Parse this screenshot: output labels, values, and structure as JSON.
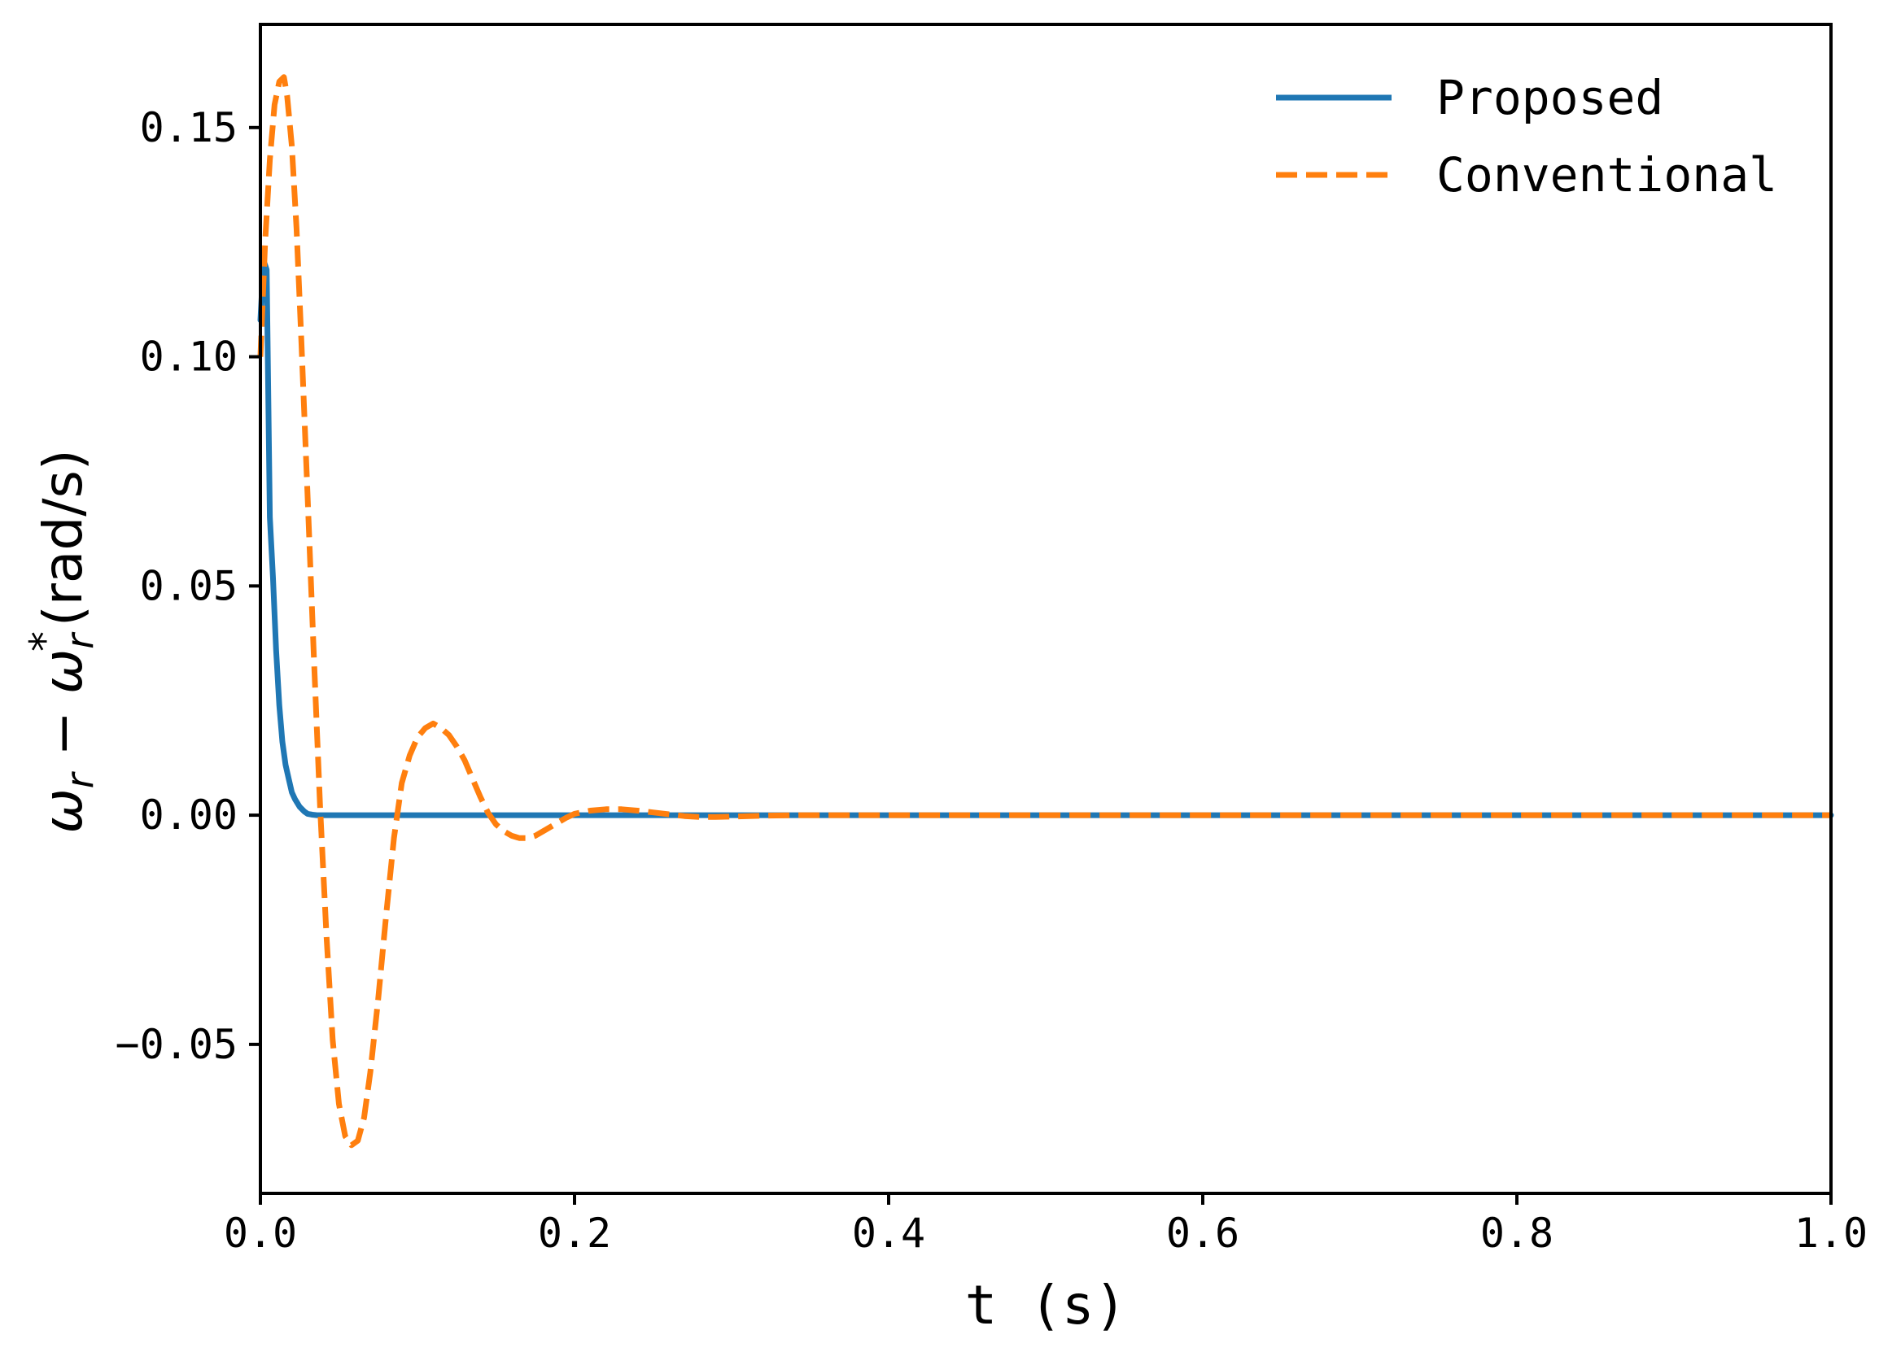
{
  "chart_data": {
    "type": "line",
    "xlabel": "t (s)",
    "ylabel": {
      "base": "ω",
      "sub": "r",
      "minus": " − ",
      "base2": "ω",
      "sub2": "r",
      "sup2": "*",
      "unit": "(rad/s)"
    },
    "xlim": [
      0.0,
      1.0
    ],
    "ylim": [
      -0.0825,
      0.1725
    ],
    "xticks": [
      0.0,
      0.2,
      0.4,
      0.6,
      0.8,
      1.0
    ],
    "xtick_labels": [
      "0.0",
      "0.2",
      "0.4",
      "0.6",
      "0.8",
      "1.0"
    ],
    "yticks": [
      -0.05,
      0.0,
      0.05,
      0.1,
      0.15
    ],
    "ytick_labels": [
      "−0.05",
      "0.00",
      "0.05",
      "0.10",
      "0.15"
    ],
    "grid": false,
    "legend_position": "top-right",
    "series": [
      {
        "name": "Proposed",
        "color": "#1f77b4",
        "style": "solid",
        "x": [
          0.0,
          0.002,
          0.004,
          0.006,
          0.008,
          0.01,
          0.012,
          0.014,
          0.016,
          0.018,
          0.02,
          0.022,
          0.025,
          0.028,
          0.03,
          0.033,
          0.036,
          0.04,
          0.05,
          0.1,
          0.2,
          0.3,
          0.4,
          0.5,
          0.6,
          0.7,
          0.8,
          0.9,
          1.0
        ],
        "y": [
          0.108,
          0.121,
          0.119,
          0.065,
          0.052,
          0.036,
          0.024,
          0.016,
          0.011,
          0.008,
          0.005,
          0.0035,
          0.0018,
          0.0008,
          0.0003,
          0.0001,
          0.0,
          0.0,
          0.0,
          0.0,
          0.0,
          0.0,
          0.0,
          0.0,
          0.0,
          0.0,
          0.0,
          0.0,
          0.0
        ]
      },
      {
        "name": "Conventional",
        "color": "#ff7f0e",
        "style": "dashed",
        "x": [
          0.0,
          0.003,
          0.006,
          0.009,
          0.012,
          0.015,
          0.017,
          0.02,
          0.023,
          0.026,
          0.03,
          0.034,
          0.038,
          0.042,
          0.046,
          0.05,
          0.054,
          0.058,
          0.062,
          0.066,
          0.07,
          0.075,
          0.08,
          0.085,
          0.09,
          0.095,
          0.1,
          0.105,
          0.11,
          0.115,
          0.12,
          0.125,
          0.13,
          0.135,
          0.14,
          0.145,
          0.15,
          0.155,
          0.16,
          0.165,
          0.17,
          0.175,
          0.18,
          0.185,
          0.19,
          0.195,
          0.2,
          0.21,
          0.22,
          0.23,
          0.24,
          0.25,
          0.26,
          0.27,
          0.28,
          0.29,
          0.3,
          0.32,
          0.34,
          0.36,
          0.4,
          0.5,
          0.6,
          0.7,
          0.8,
          0.9,
          1.0
        ],
        "y": [
          0.1,
          0.125,
          0.143,
          0.155,
          0.16,
          0.161,
          0.157,
          0.146,
          0.128,
          0.104,
          0.07,
          0.035,
          0.002,
          -0.026,
          -0.049,
          -0.063,
          -0.07,
          -0.072,
          -0.071,
          -0.066,
          -0.056,
          -0.04,
          -0.022,
          -0.005,
          0.007,
          0.013,
          0.017,
          0.019,
          0.02,
          0.019,
          0.0175,
          0.015,
          0.012,
          0.008,
          0.004,
          0.0005,
          -0.002,
          -0.0035,
          -0.0045,
          -0.005,
          -0.005,
          -0.0045,
          -0.0035,
          -0.0025,
          -0.0015,
          -0.0005,
          0.0003,
          0.001,
          0.0013,
          0.0013,
          0.001,
          0.0006,
          0.0002,
          -0.0002,
          -0.0004,
          -0.0004,
          -0.0003,
          -0.0001,
          0.0,
          0.0,
          0.0,
          0.0,
          0.0,
          0.0,
          0.0,
          0.0,
          0.0
        ]
      }
    ]
  }
}
